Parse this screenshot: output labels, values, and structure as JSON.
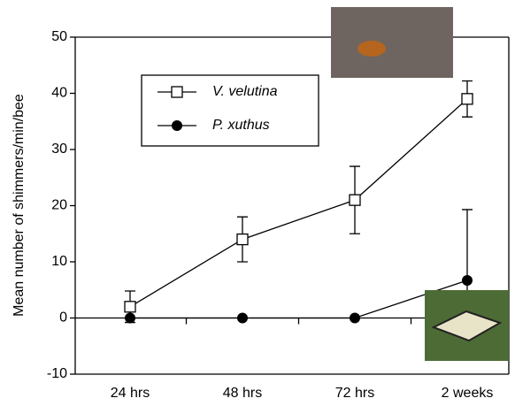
{
  "chart_data": {
    "type": "line",
    "y_label": "Mean number of shimmers/min/bee",
    "categories": [
      "24 hrs",
      "48 hrs",
      "72 hrs",
      "2 weeks"
    ],
    "series": [
      {
        "name": "V. velutina",
        "color": "#000000",
        "marker": "open-square",
        "values": [
          2,
          14,
          21,
          39
        ],
        "error": [
          2.8,
          4,
          6,
          3.2
        ]
      },
      {
        "name": "P. xuthus",
        "color": "#000000",
        "marker": "filled-circle",
        "values": [
          0,
          0,
          0,
          6.7
        ],
        "error": [
          0,
          0,
          0,
          12.6
        ]
      }
    ],
    "ylim": [
      -10,
      50
    ],
    "yticks": [
      -10,
      0,
      10,
      20,
      30,
      40,
      50
    ],
    "zero_line": true
  }
}
